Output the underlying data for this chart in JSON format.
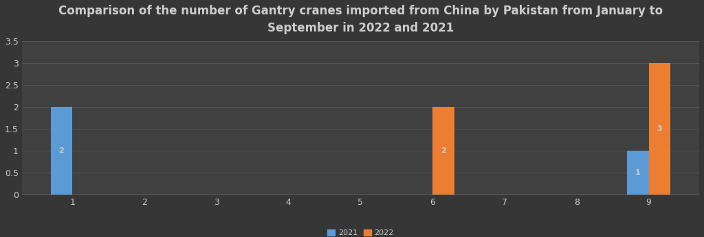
{
  "title": "Comparison of the number of Gantry cranes imported from China by Pakistan from January to\nSeptember in 2022 and 2021",
  "months": [
    1,
    2,
    3,
    4,
    5,
    6,
    7,
    8,
    9
  ],
  "data_2021": [
    2,
    0,
    0,
    0,
    0,
    0,
    0,
    0,
    1
  ],
  "data_2022": [
    0,
    0,
    0,
    0,
    0,
    2,
    0,
    0,
    3
  ],
  "color_2021": "#5B9BD5",
  "color_2022": "#ED7D31",
  "bg_dark": "#2B2B2B",
  "bg_mid": "#404040",
  "bg_light": "#555555",
  "grid_color": "#666666",
  "text_color": "#CCCCCC",
  "ylim": [
    0,
    3.5
  ],
  "yticks": [
    0,
    0.5,
    1,
    1.5,
    2,
    2.5,
    3,
    3.5
  ],
  "bar_width": 0.3,
  "legend_labels": [
    "2021",
    "2022"
  ],
  "title_fontsize": 12,
  "tick_fontsize": 9,
  "legend_fontsize": 8,
  "label_fontsize": 8
}
